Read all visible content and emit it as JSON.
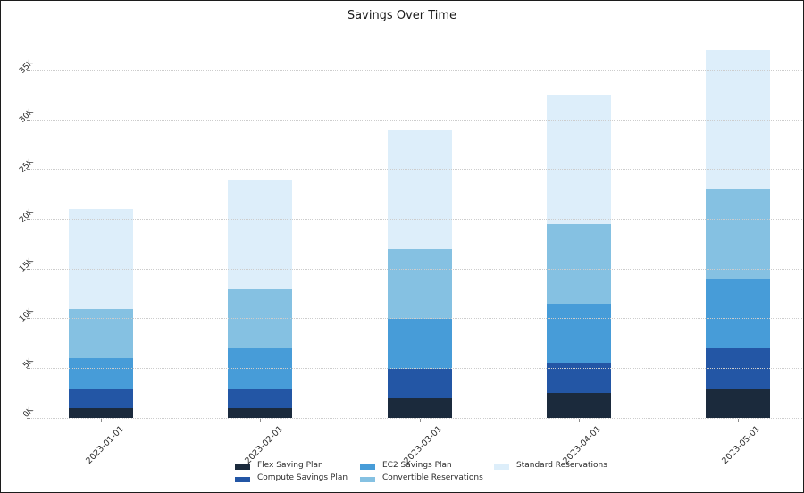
{
  "chart_data": {
    "type": "bar",
    "stacked": true,
    "title": "Savings Over Time",
    "xlabel": "",
    "ylabel": "",
    "categories": [
      "2023-01-01",
      "2023-02-01",
      "2023-03-01",
      "2023-04-01",
      "2023-05-01"
    ],
    "series": [
      {
        "name": "Flex Saving Plan",
        "color": "#1b2a3c",
        "values": [
          1000,
          1000,
          2000,
          2500,
          3000
        ]
      },
      {
        "name": "Compute Savings Plan",
        "color": "#2356a5",
        "values": [
          2000,
          2000,
          3000,
          3000,
          4000
        ]
      },
      {
        "name": "EC2 Savings Plan",
        "color": "#479cd8",
        "values": [
          3000,
          4000,
          5000,
          6000,
          7000
        ]
      },
      {
        "name": "Convertible Reservations",
        "color": "#85c1e2",
        "values": [
          5000,
          6000,
          7000,
          8000,
          9000
        ]
      },
      {
        "name": "Standard Reservations",
        "color": "#ddeefa",
        "values": [
          10000,
          11000,
          12000,
          13000,
          14000
        ]
      }
    ],
    "totals": [
      21000,
      24000,
      29000,
      32500,
      37000
    ],
    "ylim": [
      0,
      37000
    ],
    "yticks": [
      "0K",
      "5K",
      "10K",
      "15K",
      "20K",
      "25K",
      "30K",
      "35K"
    ],
    "ytick_values": [
      0,
      5000,
      10000,
      15000,
      20000,
      25000,
      30000,
      35000
    ],
    "grid": true,
    "grid_style": "dotted",
    "legend_position": "bottom",
    "legend_columns": 3
  }
}
